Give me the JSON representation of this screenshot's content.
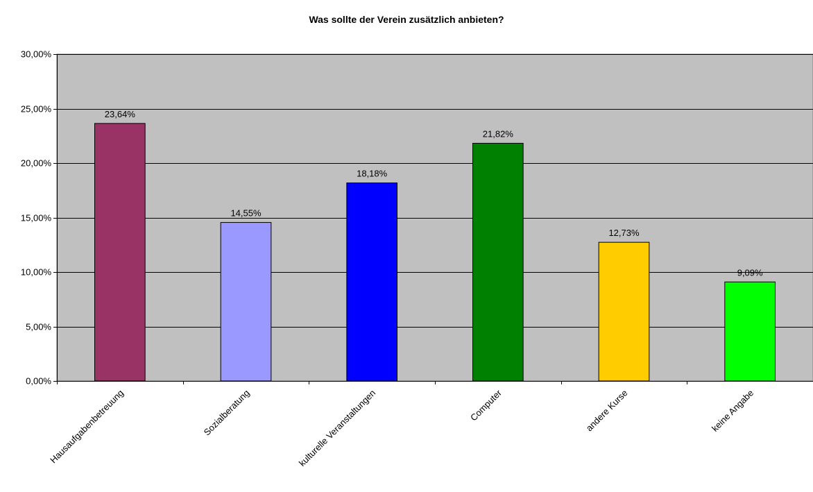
{
  "chart_data": {
    "type": "bar",
    "title": "Was sollte der Verein zusätzlich anbieten?",
    "xlabel": "",
    "ylabel": "",
    "categories": [
      "Hausaufgabenbetreuung",
      "Sozialberatung",
      "kulturelle Veranstaltungen",
      "Computer",
      "andere Kurse",
      "keine Angabe"
    ],
    "values": [
      23.64,
      14.55,
      18.18,
      21.82,
      12.73,
      9.09
    ],
    "data_labels": [
      "23,64%",
      "14,55%",
      "18,18%",
      "21,82%",
      "12,73%",
      "9,09%"
    ],
    "ylim": [
      0,
      30
    ],
    "yticks": [
      0,
      5,
      10,
      15,
      20,
      25,
      30
    ],
    "ytick_labels": [
      "0,00%",
      "5,00%",
      "10,00%",
      "15,00%",
      "20,00%",
      "25,00%",
      "30,00%"
    ],
    "grid": true,
    "legend": "none",
    "colors": {
      "plot_background": "#c0c0c0",
      "bars": [
        "#993366",
        "#9999ff",
        "#0000ff",
        "#008000",
        "#ffcc00",
        "#00ff00"
      ]
    }
  }
}
